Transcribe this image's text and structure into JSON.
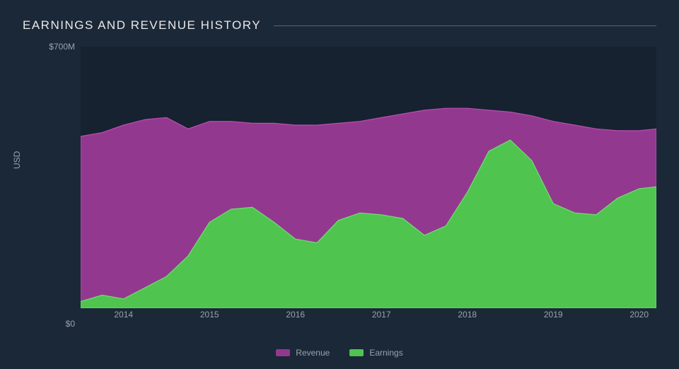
{
  "title": "EARNINGS AND REVENUE HISTORY",
  "chart": {
    "type": "area",
    "y_label": "USD",
    "y_ticks": [
      {
        "value": 700,
        "label": "$700M"
      },
      {
        "value": 0,
        "label": "$0"
      }
    ],
    "ylim": [
      0,
      700
    ],
    "background_color": "#16222f",
    "page_background": "#1b2838",
    "grid_color": "#5a6570",
    "tick_color": "#9aa3ad",
    "title_color": "#e8e8e8",
    "title_fontsize": 17,
    "tick_fontsize": 12,
    "x_ticks": [
      {
        "value": 2014,
        "label": "2014"
      },
      {
        "value": 2015,
        "label": "2015"
      },
      {
        "value": 2016,
        "label": "2016"
      },
      {
        "value": 2017,
        "label": "2017"
      },
      {
        "value": 2018,
        "label": "2018"
      },
      {
        "value": 2019,
        "label": "2019"
      },
      {
        "value": 2020,
        "label": "2020"
      }
    ],
    "xlim": [
      2013.5,
      2020.2
    ],
    "series": [
      {
        "name": "Revenue",
        "color": "#93388f",
        "stroke": "#b84fb3",
        "points": [
          [
            2013.5,
            460
          ],
          [
            2013.75,
            470
          ],
          [
            2014.0,
            490
          ],
          [
            2014.25,
            505
          ],
          [
            2014.5,
            510
          ],
          [
            2014.75,
            480
          ],
          [
            2015.0,
            500
          ],
          [
            2015.25,
            500
          ],
          [
            2015.5,
            495
          ],
          [
            2015.75,
            495
          ],
          [
            2016.0,
            490
          ],
          [
            2016.25,
            490
          ],
          [
            2016.5,
            495
          ],
          [
            2016.75,
            500
          ],
          [
            2017.0,
            510
          ],
          [
            2017.25,
            520
          ],
          [
            2017.5,
            530
          ],
          [
            2017.75,
            535
          ],
          [
            2018.0,
            535
          ],
          [
            2018.25,
            530
          ],
          [
            2018.5,
            525
          ],
          [
            2018.75,
            515
          ],
          [
            2019.0,
            500
          ],
          [
            2019.25,
            490
          ],
          [
            2019.5,
            480
          ],
          [
            2019.75,
            475
          ],
          [
            2020.0,
            475
          ],
          [
            2020.2,
            480
          ]
        ]
      },
      {
        "name": "Earnings",
        "color": "#4fc44f",
        "stroke": "#6de06d",
        "points": [
          [
            2013.5,
            18
          ],
          [
            2013.75,
            35
          ],
          [
            2014.0,
            25
          ],
          [
            2014.25,
            55
          ],
          [
            2014.5,
            85
          ],
          [
            2014.75,
            140
          ],
          [
            2015.0,
            230
          ],
          [
            2015.25,
            265
          ],
          [
            2015.5,
            270
          ],
          [
            2015.75,
            230
          ],
          [
            2016.0,
            185
          ],
          [
            2016.25,
            175
          ],
          [
            2016.5,
            235
          ],
          [
            2016.75,
            255
          ],
          [
            2017.0,
            250
          ],
          [
            2017.25,
            240
          ],
          [
            2017.5,
            195
          ],
          [
            2017.75,
            220
          ],
          [
            2018.0,
            310
          ],
          [
            2018.25,
            420
          ],
          [
            2018.5,
            450
          ],
          [
            2018.75,
            395
          ],
          [
            2019.0,
            280
          ],
          [
            2019.25,
            255
          ],
          [
            2019.5,
            250
          ],
          [
            2019.75,
            295
          ],
          [
            2020.0,
            320
          ],
          [
            2020.2,
            325
          ]
        ]
      }
    ],
    "legend": [
      {
        "label": "Revenue",
        "color": "#93388f"
      },
      {
        "label": "Earnings",
        "color": "#4fc44f"
      }
    ]
  }
}
